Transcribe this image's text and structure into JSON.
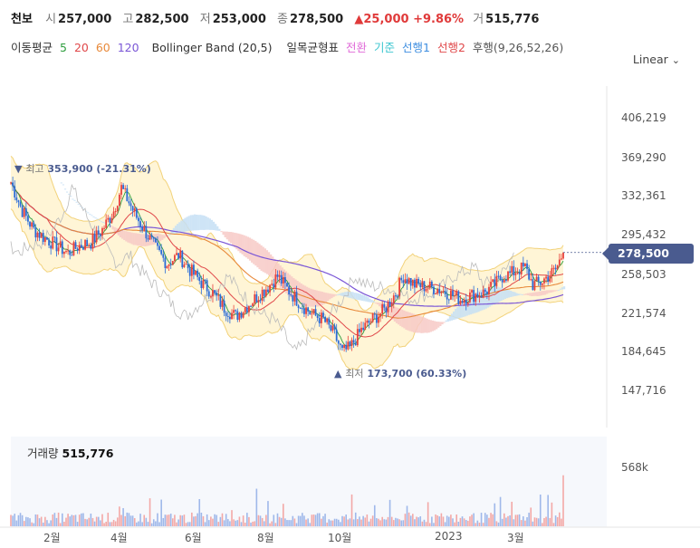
{
  "header": {
    "name": "천보",
    "open_label": "시",
    "open": "257,000",
    "high_label": "고",
    "high": "282,500",
    "low_label": "저",
    "low": "253,000",
    "close_label": "종",
    "close": "278,500",
    "change": "▲25,000 +9.86%",
    "volume_label": "거",
    "volume": "515,776"
  },
  "indicators": {
    "ma_label": "이동평균",
    "ma5": "5",
    "ma20": "20",
    "ma60": "60",
    "ma120": "120",
    "bollinger": "Bollinger Band (20,5)",
    "ichimoku_label": "일목균형표",
    "tenkan": "전환",
    "kijun": "기준",
    "senkou1": "선행1",
    "senkou2": "선행2",
    "chikou": "후행(9,26,52,26)",
    "colors": {
      "ma5": "#2e9e3e",
      "ma20": "#e0484a",
      "ma60": "#e8893a",
      "ma120": "#7a56d6",
      "tenkan": "#e06ad8",
      "kijun": "#3cc6d0",
      "senkou1": "#3e8ee0",
      "senkou2": "#e0484a",
      "chikou": "#888888"
    }
  },
  "scale_toggle": "Linear",
  "chart_data": {
    "type": "candlestick",
    "y_ticks": [
      "406,219",
      "369,290",
      "332,361",
      "295,432",
      "258,503",
      "221,574",
      "184,645",
      "147,716"
    ],
    "y_tick_values": [
      406219,
      369290,
      332361,
      295432,
      258503,
      221574,
      184645,
      147716
    ],
    "ylim": [
      120000,
      440000
    ],
    "x_ticks": [
      "2월",
      "4월",
      "6월",
      "8월",
      "10월",
      "2023",
      "3월"
    ],
    "last_price": "278,500",
    "high_annotation": {
      "marker": "▼",
      "label": "최고",
      "value": "353,900",
      "pct": "(-21.31%)"
    },
    "low_annotation": {
      "marker": "▲",
      "label": "최저",
      "value": "173,700",
      "pct": "(60.33%)"
    },
    "close_trend": [
      [
        0,
        345000
      ],
      [
        6,
        318000
      ],
      [
        12,
        300000
      ],
      [
        18,
        292000
      ],
      [
        24,
        285000
      ],
      [
        30,
        278000
      ],
      [
        36,
        285000
      ],
      [
        42,
        288000
      ],
      [
        48,
        300000
      ],
      [
        54,
        318000
      ],
      [
        58,
        340000
      ],
      [
        62,
        326000
      ],
      [
        66,
        312000
      ],
      [
        70,
        300000
      ],
      [
        76,
        282000
      ],
      [
        82,
        268000
      ],
      [
        88,
        276000
      ],
      [
        94,
        262000
      ],
      [
        100,
        250000
      ],
      [
        106,
        240000
      ],
      [
        112,
        226000
      ],
      [
        118,
        218000
      ],
      [
        124,
        228000
      ],
      [
        130,
        238000
      ],
      [
        136,
        248000
      ],
      [
        140,
        256000
      ],
      [
        146,
        242000
      ],
      [
        152,
        230000
      ],
      [
        158,
        220000
      ],
      [
        164,
        215000
      ],
      [
        170,
        200000
      ],
      [
        174,
        184000
      ],
      [
        178,
        188000
      ],
      [
        184,
        205000
      ],
      [
        190,
        215000
      ],
      [
        196,
        224000
      ],
      [
        202,
        240000
      ],
      [
        206,
        256000
      ],
      [
        212,
        248000
      ],
      [
        218,
        246000
      ],
      [
        224,
        244000
      ],
      [
        230,
        240000
      ],
      [
        236,
        234000
      ],
      [
        242,
        238000
      ],
      [
        248,
        240000
      ],
      [
        254,
        248000
      ],
      [
        258,
        256000
      ],
      [
        262,
        258000
      ],
      [
        266,
        262000
      ],
      [
        270,
        264000
      ],
      [
        274,
        248000
      ],
      [
        278,
        250000
      ],
      [
        282,
        256000
      ],
      [
        286,
        262000
      ],
      [
        290,
        278500
      ]
    ],
    "volume": {
      "label": "거래량",
      "value": "515,776",
      "tick": "568k",
      "max": 568000
    }
  }
}
